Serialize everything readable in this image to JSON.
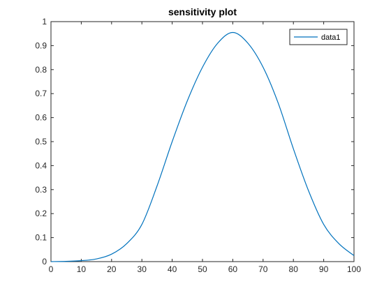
{
  "chart_data": {
    "type": "line",
    "title": "sensitivity plot",
    "xlabel": "",
    "ylabel": "",
    "xlim": [
      0,
      100
    ],
    "ylim": [
      0,
      1
    ],
    "xticks": [
      0,
      10,
      20,
      30,
      40,
      50,
      60,
      70,
      80,
      90,
      100
    ],
    "yticks": [
      0,
      0.1,
      0.2,
      0.3,
      0.4,
      0.5,
      0.6,
      0.7,
      0.8,
      0.9,
      1
    ],
    "grid": false,
    "legend_position": "top-right",
    "series": [
      {
        "name": "data1",
        "color": "#0072BD",
        "x": [
          0,
          5,
          10,
          15,
          20,
          25,
          30,
          35,
          40,
          45,
          50,
          55,
          60,
          65,
          70,
          75,
          80,
          85,
          90,
          95,
          100
        ],
        "y": [
          0.0,
          0.001,
          0.004,
          0.011,
          0.031,
          0.075,
          0.155,
          0.315,
          0.5,
          0.67,
          0.81,
          0.91,
          0.955,
          0.91,
          0.81,
          0.66,
          0.47,
          0.295,
          0.155,
          0.075,
          0.025
        ]
      }
    ]
  }
}
